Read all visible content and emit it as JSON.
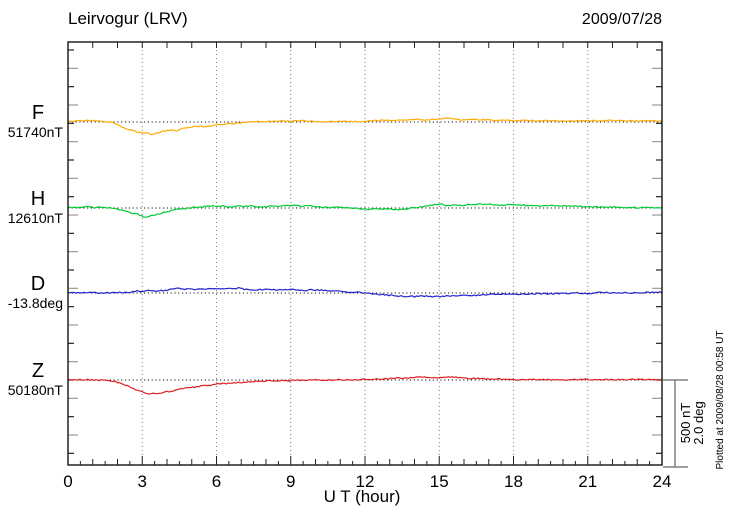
{
  "chart_data": {
    "type": "line",
    "title": "Leirvogur (LRV)",
    "date": "2009/07/28",
    "xlabel": "U T (hour)",
    "x_range": [
      0,
      24
    ],
    "x_ticks": [
      0,
      3,
      6,
      9,
      12,
      15,
      18,
      21,
      24
    ],
    "grid": "dotted vertical gridlines every 3 hours; dotted horizontal baseline per channel",
    "scale": {
      "nT_per_div": 500,
      "deg_per_div": 2.0,
      "labels": [
        "500 nT",
        "2.0 deg"
      ]
    },
    "plotted_note": "Plotted at 2009/08/28 00:58 UT",
    "series": [
      {
        "name": "F",
        "label": "F",
        "baseline_label": "51740nT",
        "unit": "nT",
        "baseline": 51740,
        "color": "#ffaa00",
        "points": [
          [
            0,
            51744
          ],
          [
            0.4,
            51746
          ],
          [
            0.8,
            51748
          ],
          [
            1.2,
            51746
          ],
          [
            1.6,
            51742
          ],
          [
            1.9,
            51734
          ],
          [
            2.2,
            51712
          ],
          [
            2.5,
            51698
          ],
          [
            2.8,
            51682
          ],
          [
            3.0,
            51678
          ],
          [
            3.2,
            51682
          ],
          [
            3.4,
            51670
          ],
          [
            3.6,
            51678
          ],
          [
            3.8,
            51686
          ],
          [
            4.1,
            51696
          ],
          [
            4.4,
            51692
          ],
          [
            4.7,
            51706
          ],
          [
            5.0,
            51712
          ],
          [
            5.3,
            51718
          ],
          [
            5.6,
            51714
          ],
          [
            5.9,
            51722
          ],
          [
            6.2,
            51726
          ],
          [
            6.6,
            51730
          ],
          [
            7.0,
            51735
          ],
          [
            7.5,
            51740
          ],
          [
            8.0,
            51743
          ],
          [
            8.5,
            51746
          ],
          [
            9.0,
            51744
          ],
          [
            9.5,
            51746
          ],
          [
            10.0,
            51743
          ],
          [
            10.5,
            51741
          ],
          [
            11.0,
            51743
          ],
          [
            11.5,
            51741
          ],
          [
            12.0,
            51743
          ],
          [
            12.5,
            51748
          ],
          [
            13.0,
            51751
          ],
          [
            13.5,
            51751
          ],
          [
            14.0,
            51753
          ],
          [
            14.5,
            51751
          ],
          [
            15.0,
            51756
          ],
          [
            15.3,
            51762
          ],
          [
            15.7,
            51753
          ],
          [
            16.0,
            51751
          ],
          [
            16.5,
            51753
          ],
          [
            17.0,
            51751
          ],
          [
            17.5,
            51751
          ],
          [
            18.0,
            51749
          ],
          [
            18.5,
            51748
          ],
          [
            19.0,
            51748
          ],
          [
            19.5,
            51747
          ],
          [
            20.0,
            51746
          ],
          [
            20.5,
            51746
          ],
          [
            21.0,
            51746
          ],
          [
            21.5,
            51747
          ],
          [
            22.0,
            51748
          ],
          [
            22.5,
            51746
          ],
          [
            23.0,
            51746
          ],
          [
            23.5,
            51745
          ],
          [
            24.0,
            51746
          ]
        ]
      },
      {
        "name": "H",
        "label": "H",
        "baseline_label": "12610nT",
        "unit": "nT",
        "baseline": 12610,
        "color": "#00cc33",
        "points": [
          [
            0,
            12612
          ],
          [
            0.4,
            12614
          ],
          [
            0.8,
            12618
          ],
          [
            1.1,
            12612
          ],
          [
            1.4,
            12615
          ],
          [
            1.7,
            12610
          ],
          [
            2.0,
            12604
          ],
          [
            2.3,
            12593
          ],
          [
            2.6,
            12582
          ],
          [
            2.9,
            12571
          ],
          [
            3.1,
            12560
          ],
          [
            3.3,
            12566
          ],
          [
            3.5,
            12571
          ],
          [
            3.8,
            12582
          ],
          [
            4.1,
            12593
          ],
          [
            4.4,
            12602
          ],
          [
            4.7,
            12607
          ],
          [
            5.0,
            12612
          ],
          [
            5.4,
            12616
          ],
          [
            5.8,
            12621
          ],
          [
            6.2,
            12621
          ],
          [
            6.6,
            12617
          ],
          [
            7.0,
            12621
          ],
          [
            7.4,
            12621
          ],
          [
            7.8,
            12617
          ],
          [
            8.2,
            12621
          ],
          [
            8.6,
            12621
          ],
          [
            9.0,
            12625
          ],
          [
            9.4,
            12621
          ],
          [
            9.8,
            12621
          ],
          [
            10.2,
            12616
          ],
          [
            10.6,
            12612
          ],
          [
            11.0,
            12616
          ],
          [
            11.4,
            12611
          ],
          [
            11.8,
            12606
          ],
          [
            12.2,
            12601
          ],
          [
            12.6,
            12605
          ],
          [
            13.0,
            12604
          ],
          [
            13.4,
            12601
          ],
          [
            13.8,
            12608
          ],
          [
            14.2,
            12614
          ],
          [
            14.6,
            12624
          ],
          [
            15.0,
            12632
          ],
          [
            15.3,
            12623
          ],
          [
            15.6,
            12625
          ],
          [
            16.0,
            12626
          ],
          [
            16.4,
            12630
          ],
          [
            16.8,
            12632
          ],
          [
            17.2,
            12628
          ],
          [
            17.6,
            12627
          ],
          [
            18.0,
            12627
          ],
          [
            18.5,
            12626
          ],
          [
            19.0,
            12623
          ],
          [
            19.5,
            12622
          ],
          [
            20.0,
            12621
          ],
          [
            20.5,
            12620
          ],
          [
            21.0,
            12617
          ],
          [
            21.5,
            12616
          ],
          [
            22.0,
            12615
          ],
          [
            22.5,
            12613
          ],
          [
            23.0,
            12612
          ],
          [
            23.5,
            12611
          ],
          [
            24.0,
            12611
          ]
        ]
      },
      {
        "name": "D",
        "label": "D",
        "baseline_label": "-13.8deg",
        "unit": "deg",
        "baseline": -13.8,
        "color": "#2222cc",
        "points": [
          [
            0,
            -13.8
          ],
          [
            0.5,
            -13.8
          ],
          [
            1.0,
            -13.79
          ],
          [
            1.5,
            -13.8
          ],
          [
            2.0,
            -13.79
          ],
          [
            2.5,
            -13.78
          ],
          [
            2.8,
            -13.76
          ],
          [
            3.0,
            -13.78
          ],
          [
            3.2,
            -13.74
          ],
          [
            3.5,
            -13.76
          ],
          [
            3.8,
            -13.75
          ],
          [
            4.1,
            -13.73
          ],
          [
            4.4,
            -13.69
          ],
          [
            4.7,
            -13.71
          ],
          [
            5.0,
            -13.72
          ],
          [
            5.4,
            -13.72
          ],
          [
            5.8,
            -13.71
          ],
          [
            6.2,
            -13.72
          ],
          [
            6.6,
            -13.7
          ],
          [
            6.9,
            -13.69
          ],
          [
            7.2,
            -13.72
          ],
          [
            7.6,
            -13.73
          ],
          [
            8.0,
            -13.72
          ],
          [
            8.4,
            -13.73
          ],
          [
            8.8,
            -13.72
          ],
          [
            9.2,
            -13.73
          ],
          [
            9.6,
            -13.74
          ],
          [
            10.0,
            -13.73
          ],
          [
            10.4,
            -13.74
          ],
          [
            10.8,
            -13.76
          ],
          [
            11.2,
            -13.77
          ],
          [
            11.6,
            -13.78
          ],
          [
            12.0,
            -13.8
          ],
          [
            12.4,
            -13.82
          ],
          [
            12.8,
            -13.84
          ],
          [
            13.2,
            -13.86
          ],
          [
            13.6,
            -13.87
          ],
          [
            14.0,
            -13.88
          ],
          [
            14.4,
            -13.87
          ],
          [
            14.8,
            -13.88
          ],
          [
            15.2,
            -13.87
          ],
          [
            15.6,
            -13.86
          ],
          [
            16.0,
            -13.85
          ],
          [
            16.5,
            -13.85
          ],
          [
            17.0,
            -13.83
          ],
          [
            17.5,
            -13.82
          ],
          [
            18.0,
            -13.83
          ],
          [
            18.5,
            -13.82
          ],
          [
            19.0,
            -13.81
          ],
          [
            19.5,
            -13.82
          ],
          [
            20.0,
            -13.81
          ],
          [
            20.5,
            -13.8
          ],
          [
            21.0,
            -13.81
          ],
          [
            21.5,
            -13.79
          ],
          [
            22.0,
            -13.8
          ],
          [
            22.5,
            -13.79
          ],
          [
            23.0,
            -13.8
          ],
          [
            23.5,
            -13.79
          ],
          [
            24.0,
            -13.78
          ]
        ]
      },
      {
        "name": "Z",
        "label": "Z",
        "baseline_label": "50180nT",
        "unit": "nT",
        "baseline": 50180,
        "color": "#dd2020",
        "points": [
          [
            0,
            50181
          ],
          [
            0.5,
            50183
          ],
          [
            1.0,
            50181
          ],
          [
            1.5,
            50178
          ],
          [
            1.8,
            50174
          ],
          [
            2.1,
            50163
          ],
          [
            2.4,
            50147
          ],
          [
            2.7,
            50130
          ],
          [
            3.0,
            50113
          ],
          [
            3.2,
            50102
          ],
          [
            3.4,
            50108
          ],
          [
            3.6,
            50104
          ],
          [
            3.9,
            50113
          ],
          [
            4.2,
            50119
          ],
          [
            4.5,
            50130
          ],
          [
            4.8,
            50136
          ],
          [
            5.1,
            50141
          ],
          [
            5.4,
            50147
          ],
          [
            5.7,
            50149
          ],
          [
            6.0,
            50158
          ],
          [
            6.3,
            50161
          ],
          [
            6.6,
            50163
          ],
          [
            6.9,
            50166
          ],
          [
            7.2,
            50169
          ],
          [
            7.6,
            50172
          ],
          [
            8.0,
            50174
          ],
          [
            8.5,
            50177
          ],
          [
            9.0,
            50177
          ],
          [
            9.5,
            50179
          ],
          [
            10.0,
            50180
          ],
          [
            10.5,
            50180
          ],
          [
            11.0,
            50181
          ],
          [
            11.5,
            50182
          ],
          [
            12.0,
            50183
          ],
          [
            12.5,
            50186
          ],
          [
            13.0,
            50188
          ],
          [
            13.5,
            50191
          ],
          [
            14.0,
            50193
          ],
          [
            14.5,
            50196
          ],
          [
            15.0,
            50194
          ],
          [
            15.5,
            50196
          ],
          [
            16.0,
            50191
          ],
          [
            16.5,
            50188
          ],
          [
            17.0,
            50186
          ],
          [
            17.5,
            50185
          ],
          [
            18.0,
            50183
          ],
          [
            18.5,
            50182
          ],
          [
            19.0,
            50183
          ],
          [
            19.5,
            50182
          ],
          [
            20.0,
            50181
          ],
          [
            20.5,
            50182
          ],
          [
            21.0,
            50183
          ],
          [
            21.5,
            50182
          ],
          [
            22.0,
            50181
          ],
          [
            22.5,
            50182
          ],
          [
            23.0,
            50183
          ],
          [
            23.5,
            50182
          ],
          [
            24.0,
            50183
          ]
        ]
      }
    ]
  }
}
